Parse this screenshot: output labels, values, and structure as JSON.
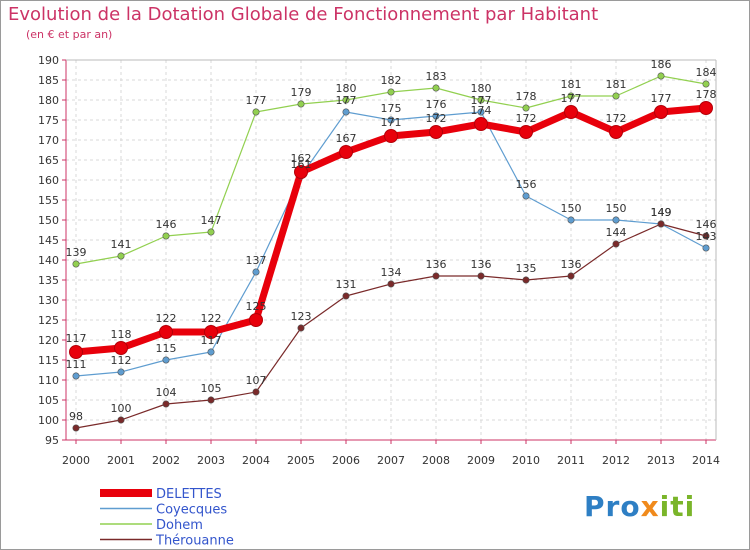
{
  "chart_data": {
    "type": "line",
    "title": "Evolution de la Dotation Globale de Fonctionnement par Habitant",
    "subtitle": "(en € et par an)",
    "xlabel": "",
    "ylabel": "",
    "x": [
      "2000",
      "2001",
      "2002",
      "2003",
      "2004",
      "2005",
      "2006",
      "2007",
      "2008",
      "2009",
      "2010",
      "2011",
      "2012",
      "2013",
      "2014"
    ],
    "ylim": [
      95,
      190
    ],
    "yticks": [
      95,
      100,
      105,
      110,
      115,
      120,
      125,
      130,
      135,
      140,
      145,
      150,
      155,
      160,
      165,
      170,
      175,
      180,
      185,
      190
    ],
    "grid": true,
    "legend_position": "bottom-left",
    "series": [
      {
        "name": "DELETTES",
        "color": "#e8000b",
        "values": [
          117,
          118,
          122,
          122,
          125,
          162,
          167,
          171,
          172,
          174,
          172,
          177,
          172,
          177,
          178
        ]
      },
      {
        "name": "Coyecques",
        "color": "#5f9dd0",
        "values": [
          111,
          112,
          115,
          117,
          137,
          161,
          177,
          175,
          176,
          177,
          156,
          150,
          150,
          149,
          143
        ]
      },
      {
        "name": "Dohem",
        "color": "#92d050",
        "values": [
          139,
          141,
          146,
          147,
          177,
          179,
          180,
          182,
          183,
          180,
          178,
          181,
          181,
          186,
          184
        ]
      },
      {
        "name": "Thérouanne",
        "color": "#7a2a2a",
        "values": [
          98,
          100,
          104,
          105,
          107,
          123,
          131,
          134,
          136,
          136,
          135,
          136,
          144,
          149,
          146
        ]
      }
    ]
  },
  "legend": {
    "items": [
      {
        "name": "DELETTES",
        "color": "#e8000b"
      },
      {
        "name": "Coyecques",
        "color": "#5f9dd0"
      },
      {
        "name": "Dohem",
        "color": "#92d050"
      },
      {
        "name": "Thérouanne",
        "color": "#7a2a2a"
      }
    ]
  },
  "brand": {
    "part1": "Pro",
    "part2": "x",
    "part3": "iti"
  }
}
